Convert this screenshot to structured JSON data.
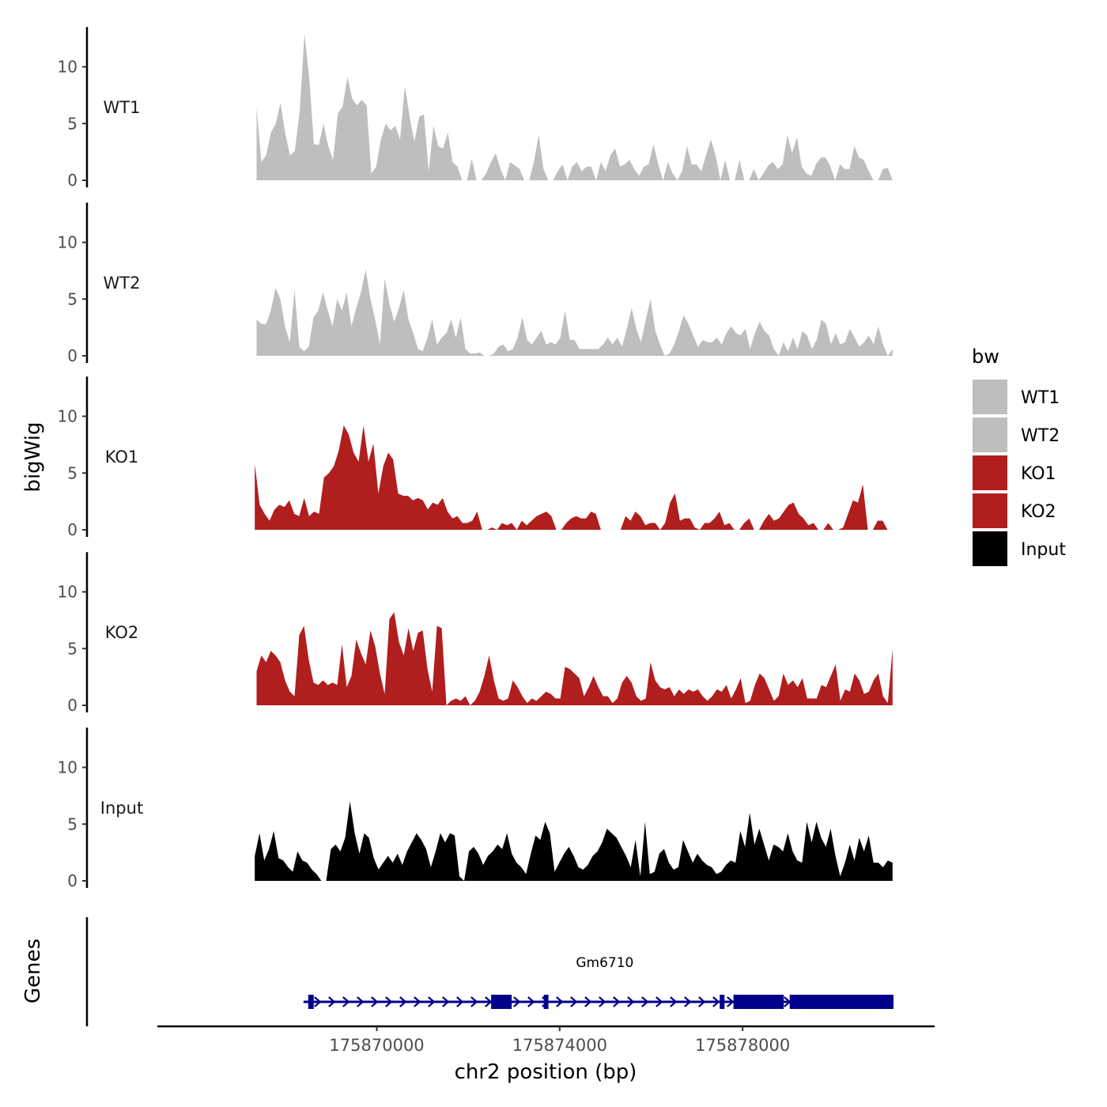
{
  "chart_data": {
    "type": "area",
    "ylabel": "bigWig",
    "xlabel": "chr2 position (bp)",
    "xlim": [
      175865200,
      175882200
    ],
    "ylim": [
      0,
      13.5
    ],
    "y_ticks": [
      0,
      5,
      10
    ],
    "x_ticks": [
      175870000,
      175874000,
      175878000
    ],
    "x_tick_labels": [
      "175870000",
      "175874000",
      "175878000"
    ],
    "legend": {
      "title": "bw",
      "position": "right",
      "entries": [
        {
          "label": "WT1",
          "color": "#bebebe"
        },
        {
          "label": "WT2",
          "color": "#bebebe"
        },
        {
          "label": "KO1",
          "color": "#b11e1e"
        },
        {
          "label": "KO2",
          "color": "#b11e1e"
        },
        {
          "label": "Input",
          "color": "#000000"
        }
      ]
    },
    "series": [
      {
        "name": "WT1",
        "color": "#bebebe",
        "x_start": 175867370,
        "x_end": 175881280,
        "values": [
          6.4,
          1.6,
          2.2,
          4.2,
          5.0,
          6.8,
          4.1,
          2.2,
          2.6,
          6.0,
          12.9,
          9.1,
          3.2,
          3.1,
          5.0,
          3.0,
          1.8,
          5.9,
          6.5,
          9.1,
          7.2,
          6.6,
          7.1,
          6.6,
          0.6,
          1.2,
          3.6,
          5.0,
          4.4,
          4.8,
          3.6,
          8.3,
          5.6,
          3.4,
          5.6,
          5.8,
          0.8,
          4.8,
          3.0,
          2.8,
          4.2,
          1.6,
          1.2,
          0.0,
          0.0,
          1.9,
          0.0,
          0.0,
          0.6,
          1.6,
          2.4,
          1.0,
          0.0,
          1.6,
          1.3,
          1.0,
          0.0,
          0.0,
          1.6,
          4.0,
          1.0,
          0.0,
          0.0,
          0.8,
          1.4,
          0.0,
          1.2,
          1.6,
          0.8,
          1.2,
          1.2,
          0.0,
          1.6,
          0.8,
          2.2,
          2.8,
          1.2,
          1.4,
          1.8,
          1.0,
          0.4,
          1.2,
          1.4,
          3.2,
          1.4,
          0.0,
          1.6,
          0.6,
          0.0,
          0.8,
          3.0,
          1.4,
          1.4,
          0.8,
          2.2,
          3.6,
          2.2,
          0.0,
          1.8,
          0.0,
          0.0,
          1.8,
          0.0,
          0.0,
          1.0,
          0.0,
          0.6,
          1.3,
          1.6,
          1.0,
          1.4,
          4.0,
          2.4,
          3.8,
          1.2,
          0.6,
          0.4,
          1.4,
          2.0,
          2.0,
          1.2,
          0.0,
          1.4,
          1.0,
          1.0,
          3.0,
          2.0,
          1.8,
          0.8,
          0.0,
          0.0,
          1.0,
          1.1,
          0.0
        ]
      },
      {
        "name": "WT2",
        "color": "#bebebe",
        "x_start": 175867370,
        "x_end": 175881280,
        "values": [
          3.2,
          2.8,
          2.8,
          4.0,
          6.0,
          5.0,
          2.6,
          1.2,
          5.8,
          0.8,
          0.4,
          0.8,
          3.4,
          4.0,
          5.6,
          4.0,
          2.6,
          5.0,
          4.0,
          5.6,
          2.6,
          4.2,
          5.6,
          7.6,
          5.0,
          3.2,
          1.0,
          6.8,
          4.6,
          3.0,
          4.2,
          5.8,
          3.2,
          2.0,
          0.6,
          0.4,
          1.6,
          3.2,
          1.0,
          1.6,
          2.0,
          3.2,
          1.6,
          3.4,
          0.6,
          0.2,
          0.2,
          0.3,
          0.0,
          0.0,
          0.2,
          0.8,
          1.0,
          0.4,
          0.6,
          1.6,
          3.4,
          1.4,
          1.0,
          1.6,
          2.2,
          1.0,
          1.2,
          1.0,
          1.6,
          4.0,
          1.4,
          1.4,
          0.6,
          0.6,
          0.6,
          0.6,
          0.6,
          1.0,
          1.6,
          1.0,
          1.6,
          0.8,
          2.4,
          4.2,
          2.4,
          1.2,
          3.2,
          5.0,
          2.2,
          1.0,
          0.0,
          0.2,
          1.0,
          2.2,
          3.6,
          2.8,
          1.8,
          0.8,
          1.4,
          1.2,
          1.2,
          1.6,
          1.0,
          2.0,
          2.6,
          2.0,
          1.8,
          2.4,
          0.6,
          2.0,
          3.0,
          2.2,
          1.8,
          0.6,
          0.0,
          1.2,
          0.4,
          1.6,
          0.6,
          2.2,
          1.8,
          0.6,
          1.4,
          3.2,
          2.8,
          1.0,
          2.0,
          1.0,
          1.2,
          2.4,
          1.6,
          0.8,
          1.2,
          1.8,
          1.0,
          2.6,
          1.0,
          0.0,
          0.6
        ]
      },
      {
        "name": "KO1",
        "color": "#b11e1e",
        "x_start": 175867330,
        "x_end": 175881280,
        "values": [
          5.8,
          2.2,
          1.4,
          0.8,
          1.8,
          2.2,
          2.0,
          2.6,
          1.4,
          1.2,
          2.8,
          1.2,
          1.6,
          1.4,
          4.6,
          5.0,
          5.6,
          7.0,
          9.2,
          8.4,
          6.8,
          6.0,
          9.2,
          6.0,
          7.6,
          3.2,
          5.6,
          6.8,
          6.2,
          3.2,
          3.0,
          3.0,
          2.6,
          2.8,
          2.6,
          1.8,
          2.4,
          2.2,
          2.8,
          1.6,
          1.0,
          1.2,
          0.6,
          0.6,
          0.8,
          1.6,
          0.0,
          0.0,
          0.2,
          0.0,
          0.6,
          0.4,
          0.6,
          0.0,
          0.8,
          0.4,
          0.8,
          1.2,
          1.4,
          1.6,
          1.2,
          0.0,
          0.0,
          0.6,
          1.0,
          1.2,
          1.0,
          1.0,
          1.6,
          1.4,
          0.0,
          0.0,
          0.0,
          0.0,
          0.0,
          1.2,
          0.8,
          1.6,
          1.2,
          0.4,
          0.6,
          0.6,
          0.0,
          0.6,
          2.4,
          3.2,
          0.8,
          1.0,
          1.0,
          0.2,
          0.0,
          0.6,
          0.6,
          1.0,
          1.6,
          0.4,
          0.6,
          0.0,
          0.0,
          0.6,
          1.0,
          0.0,
          0.0,
          0.8,
          1.4,
          0.8,
          1.0,
          1.6,
          2.2,
          2.4,
          1.4,
          1.0,
          0.4,
          0.6,
          0.0,
          0.0,
          0.6,
          0.0,
          0.0,
          0.2,
          1.4,
          2.6,
          2.4,
          4.0,
          0.0,
          0.0,
          0.8,
          0.8,
          0.0,
          0.0
        ]
      },
      {
        "name": "KO2",
        "color": "#b11e1e",
        "x_start": 175867370,
        "x_end": 175881280,
        "values": [
          3.0,
          4.4,
          3.8,
          4.8,
          4.4,
          3.8,
          2.2,
          1.2,
          0.8,
          6.2,
          7.0,
          4.0,
          2.0,
          1.8,
          2.2,
          1.8,
          2.0,
          1.8,
          5.4,
          1.6,
          2.6,
          5.8,
          4.6,
          3.6,
          6.6,
          5.2,
          2.8,
          1.0,
          7.6,
          8.2,
          5.6,
          4.4,
          6.8,
          4.8,
          6.4,
          6.6,
          3.2,
          1.2,
          7.0,
          6.8,
          0.0,
          0.4,
          0.6,
          0.4,
          0.8,
          0.0,
          0.4,
          1.2,
          2.6,
          4.4,
          2.2,
          0.6,
          0.4,
          0.6,
          2.2,
          1.6,
          0.8,
          0.2,
          0.6,
          0.4,
          0.8,
          1.2,
          1.0,
          0.6,
          0.6,
          3.4,
          3.2,
          2.8,
          2.4,
          0.8,
          1.6,
          2.6,
          1.6,
          0.8,
          0.8,
          0.2,
          0.6,
          2.0,
          2.6,
          2.0,
          0.8,
          0.4,
          0.6,
          3.8,
          2.2,
          1.6,
          1.4,
          1.6,
          0.8,
          1.4,
          1.0,
          1.4,
          1.2,
          1.4,
          0.8,
          0.4,
          0.8,
          1.4,
          1.2,
          1.8,
          0.6,
          1.4,
          2.4,
          0.2,
          0.4,
          1.8,
          2.8,
          2.4,
          1.4,
          0.4,
          0.8,
          2.8,
          1.8,
          2.2,
          1.6,
          2.4,
          0.6,
          0.6,
          0.6,
          1.8,
          1.6,
          2.6,
          3.6,
          0.4,
          1.4,
          1.2,
          2.8,
          2.2,
          1.0,
          1.2,
          2.2,
          2.8,
          0.8,
          0.2,
          5.0
        ]
      },
      {
        "name": "Input",
        "color": "#000000",
        "x_start": 175867330,
        "x_end": 175881280,
        "values": [
          2.2,
          4.2,
          1.8,
          2.8,
          4.4,
          2.0,
          1.8,
          1.2,
          0.8,
          2.6,
          1.8,
          1.6,
          1.0,
          0.6,
          0.0,
          0.0,
          2.8,
          3.2,
          2.6,
          3.8,
          7.0,
          4.2,
          2.4,
          4.2,
          3.8,
          2.0,
          1.0,
          1.6,
          2.2,
          1.6,
          2.4,
          1.4,
          2.6,
          3.4,
          4.2,
          3.6,
          2.8,
          1.2,
          2.6,
          4.2,
          3.4,
          4.2,
          4.0,
          0.4,
          0.0,
          2.6,
          3.0,
          2.4,
          1.4,
          2.2,
          2.6,
          3.2,
          2.8,
          4.2,
          2.4,
          1.6,
          1.2,
          0.6,
          2.4,
          4.0,
          3.6,
          5.2,
          4.2,
          0.8,
          1.6,
          2.4,
          3.0,
          2.2,
          1.2,
          1.0,
          1.4,
          2.2,
          2.6,
          3.4,
          4.6,
          4.2,
          3.8,
          3.0,
          2.2,
          1.2,
          3.6,
          0.4,
          5.2,
          0.6,
          0.8,
          2.4,
          2.8,
          1.6,
          1.0,
          1.2,
          3.6,
          2.6,
          1.6,
          2.4,
          1.8,
          1.4,
          1.2,
          0.6,
          0.8,
          1.4,
          1.8,
          1.6,
          4.4,
          3.0,
          6.0,
          3.2,
          4.6,
          3.2,
          1.8,
          3.2,
          3.0,
          2.6,
          4.2,
          2.6,
          1.8,
          1.6,
          5.2,
          3.4,
          5.2,
          3.8,
          3.0,
          4.6,
          2.2,
          0.4,
          1.6,
          3.2,
          1.8,
          3.8,
          2.6,
          4.0,
          1.6,
          1.6,
          1.2,
          1.8,
          1.6
        ]
      }
    ],
    "tracks": [
      "WT1",
      "WT2",
      "KO1",
      "KO2",
      "Input"
    ],
    "genes_panel": {
      "label": "Genes",
      "genes": [
        {
          "name": "Gm6710",
          "start": 175868500,
          "end": 175881300,
          "strand": "+",
          "exons": [
            [
              175868500,
              175868620
            ],
            [
              175872500,
              175872950
            ],
            [
              175873650,
              175873730
            ],
            [
              175877500,
              175877600
            ],
            [
              175877800,
              175878900
            ],
            [
              175879030,
              175881300
            ]
          ]
        }
      ]
    }
  }
}
